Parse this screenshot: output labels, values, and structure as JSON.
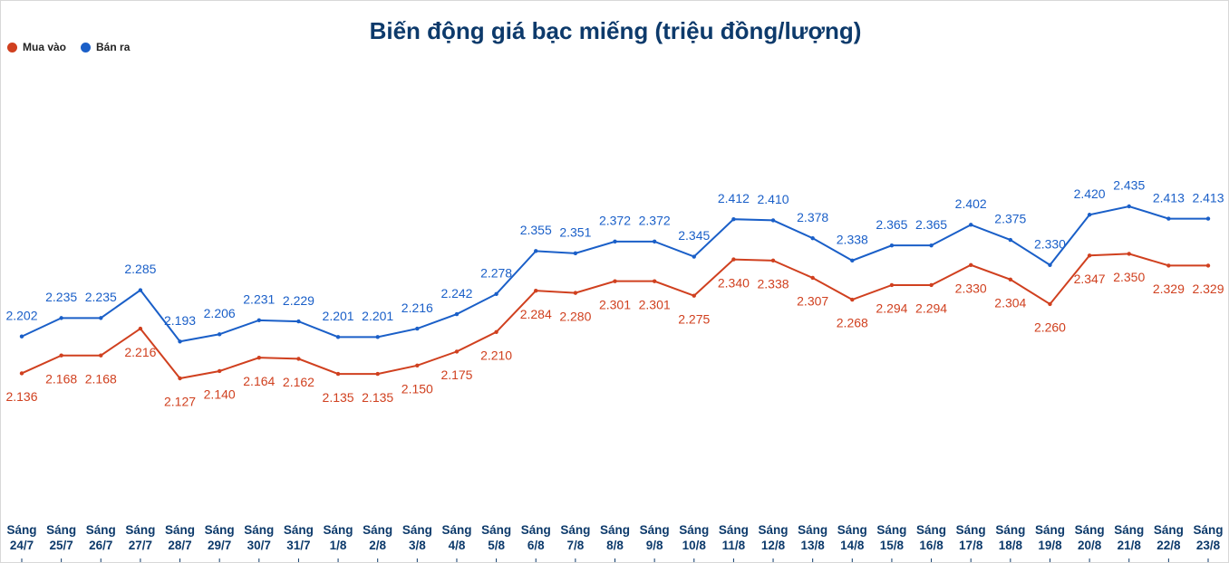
{
  "chart_data": {
    "type": "line",
    "title": "Biến động giá bạc miếng (triệu đồng/lượng)",
    "categories": [
      "Sáng 24/7",
      "Sáng 25/7",
      "Sáng 26/7",
      "Sáng 27/7",
      "Sáng 28/7",
      "Sáng 29/7",
      "Sáng 30/7",
      "Sáng 31/7",
      "Sáng 1/8",
      "Sáng 2/8",
      "Sáng 3/8",
      "Sáng 4/8",
      "Sáng 5/8",
      "Sáng 6/8",
      "Sáng 7/8",
      "Sáng 8/8",
      "Sáng 9/8",
      "Sáng 10/8",
      "Sáng 11/8",
      "Sáng 12/8",
      "Sáng 13/8",
      "Sáng 14/8",
      "Sáng 15/8",
      "Sáng 16/8",
      "Sáng 17/8",
      "Sáng 18/8",
      "Sáng 19/8",
      "Sáng 20/8",
      "Sáng 21/8",
      "Sáng 22/8",
      "Sáng 23/8"
    ],
    "series": [
      {
        "name": "Mua vào",
        "color": "#d0401f",
        "label_position": "below",
        "values": [
          2.136,
          2.168,
          2.168,
          2.216,
          2.127,
          2.14,
          2.164,
          2.162,
          2.135,
          2.135,
          2.15,
          2.175,
          2.21,
          2.284,
          2.28,
          2.301,
          2.301,
          2.275,
          2.34,
          2.338,
          2.307,
          2.268,
          2.294,
          2.294,
          2.33,
          2.304,
          2.26,
          2.347,
          2.35,
          2.329,
          2.329
        ],
        "value_labels": [
          "2.136",
          "2.168",
          "2.168",
          "2.216",
          "2.127",
          "2.140",
          "2.164",
          "2.162",
          "2.135",
          "2.135",
          "2.150",
          "2.175",
          "2.210",
          "2.284",
          "2.280",
          "2.301",
          "2.301",
          "2.275",
          "2.340",
          "2.338",
          "2.307",
          "2.268",
          "2.294",
          "2.294",
          "2.330",
          "2.304",
          "2.260",
          "2.347",
          "2.350",
          "2.329",
          "2.329"
        ]
      },
      {
        "name": "Bán ra",
        "color": "#1a5fc8",
        "label_position": "above",
        "values": [
          2.202,
          2.235,
          2.235,
          2.285,
          2.193,
          2.206,
          2.231,
          2.229,
          2.201,
          2.201,
          2.216,
          2.242,
          2.278,
          2.355,
          2.351,
          2.372,
          2.372,
          2.345,
          2.412,
          2.41,
          2.378,
          2.338,
          2.365,
          2.365,
          2.402,
          2.375,
          2.33,
          2.42,
          2.435,
          2.413,
          2.413
        ],
        "value_labels": [
          "2.202",
          "2.235",
          "2.235",
          "2.285",
          "2.193",
          "2.206",
          "2.231",
          "2.229",
          "2.201",
          "2.201",
          "2.216",
          "2.242",
          "2.278",
          "2.355",
          "2.351",
          "2.372",
          "2.372",
          "2.345",
          "2.412",
          "2.410",
          "2.378",
          "2.338",
          "2.365",
          "2.365",
          "2.402",
          "2.375",
          "2.330",
          "2.420",
          "2.435",
          "2.413",
          "2.413"
        ]
      }
    ],
    "legend": "top-left"
  }
}
